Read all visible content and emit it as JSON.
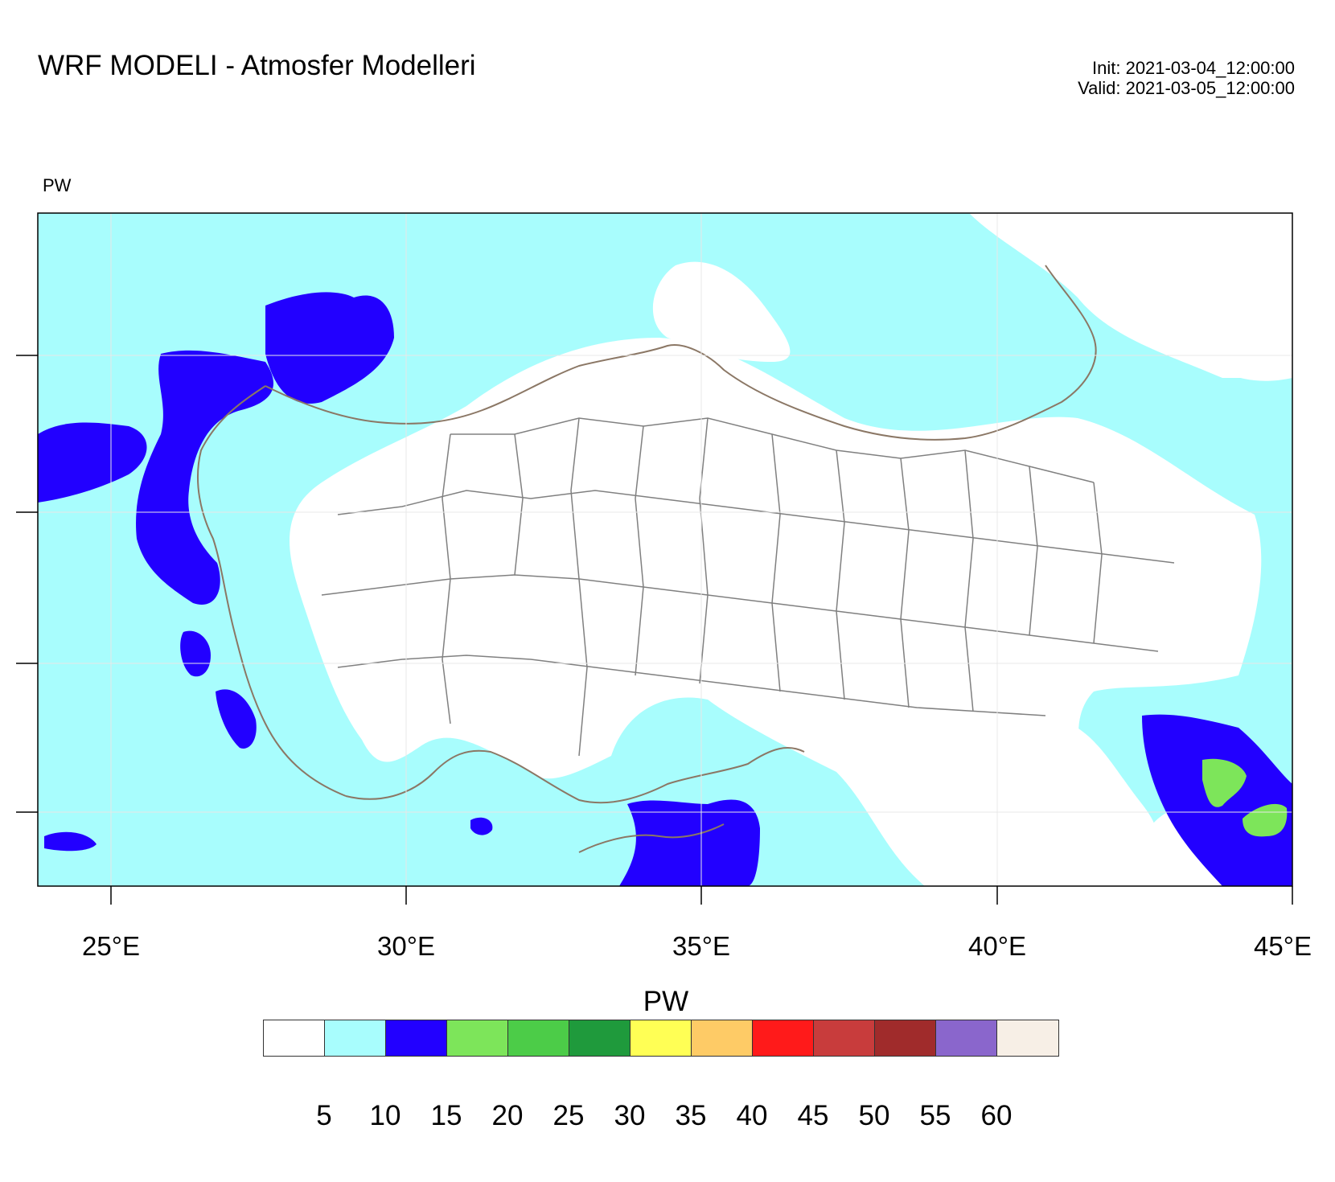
{
  "title": "WRF MODELI - Atmosfer Modelleri",
  "init_text": "Init: 2021-03-04_12:00:00",
  "valid_text": "Valid: 2021-03-05_12:00:00",
  "variable_label": "PW",
  "colorbar": {
    "title": "PW",
    "labels": [
      "5",
      "10",
      "15",
      "20",
      "25",
      "30",
      "35",
      "40",
      "45",
      "50",
      "55",
      "60"
    ],
    "colors": [
      "#ffffff",
      "#a8fdfd",
      "#2200ff",
      "#7de55a",
      "#4ccc48",
      "#1f9a3c",
      "#ffff55",
      "#fecb66",
      "#ff1a1a",
      "#c83c3c",
      "#a02b2b",
      "#8a66cc",
      "#f7efe6"
    ]
  },
  "map": {
    "x_tick_labels": [
      "25°E",
      "30°E",
      "35°E",
      "40°E",
      "45°E"
    ],
    "colors": {
      "plot_background": "#ffffff",
      "shade_low": "#a8fdfd",
      "shade_mid": "#2200ff",
      "shade_high": "#7de55a",
      "coastline": "#8b7765",
      "province_border": "#808080",
      "frame": "#000000"
    }
  }
}
